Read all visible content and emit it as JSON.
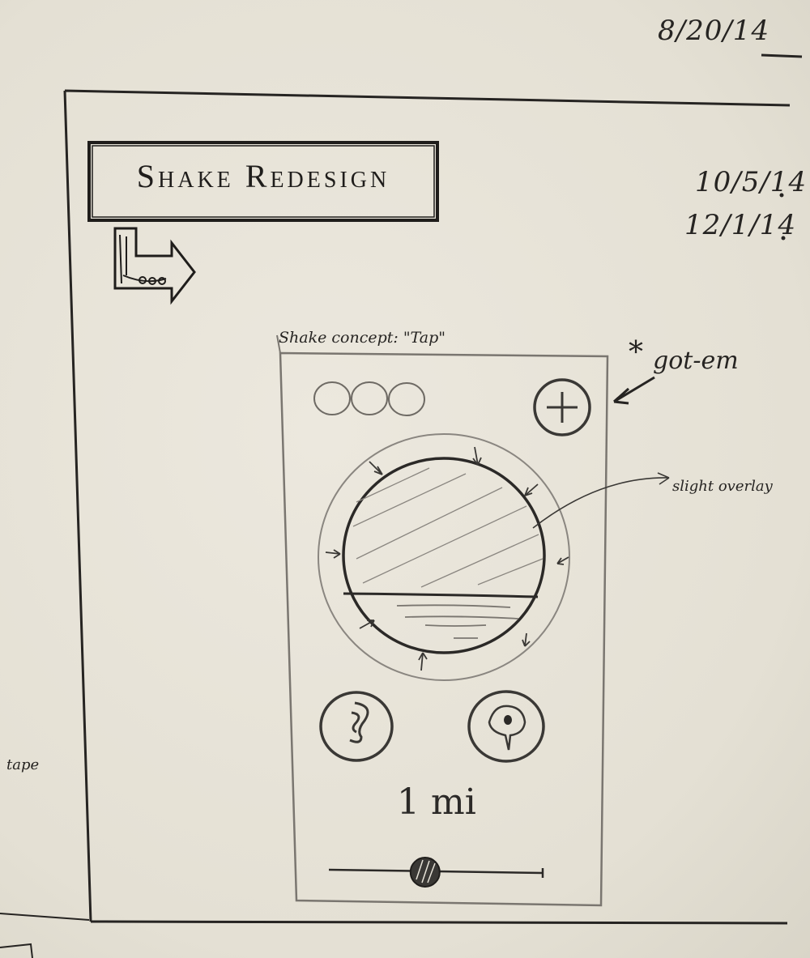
{
  "dates": [
    "8/20/14",
    "10/5/14",
    "12/1/14"
  ],
  "title": "Shake Redesign",
  "concept_caption": "Shake concept: \"Tap\"",
  "annotations": {
    "add_button_note": "got-em",
    "overlay_note": "slight overlay",
    "edge_note": "tape"
  },
  "mockup": {
    "distance_label": "1 mi",
    "slider_value_fraction": 0.45
  },
  "icons": {
    "add": "plus-circle-icon",
    "left_action": "ear-icon",
    "right_action": "location-pin-icon",
    "avatars": "avatar-circle-icon"
  },
  "colors": {
    "paper": "#e7e3d8",
    "ink": "#262422",
    "pencil": "#7a7670"
  }
}
